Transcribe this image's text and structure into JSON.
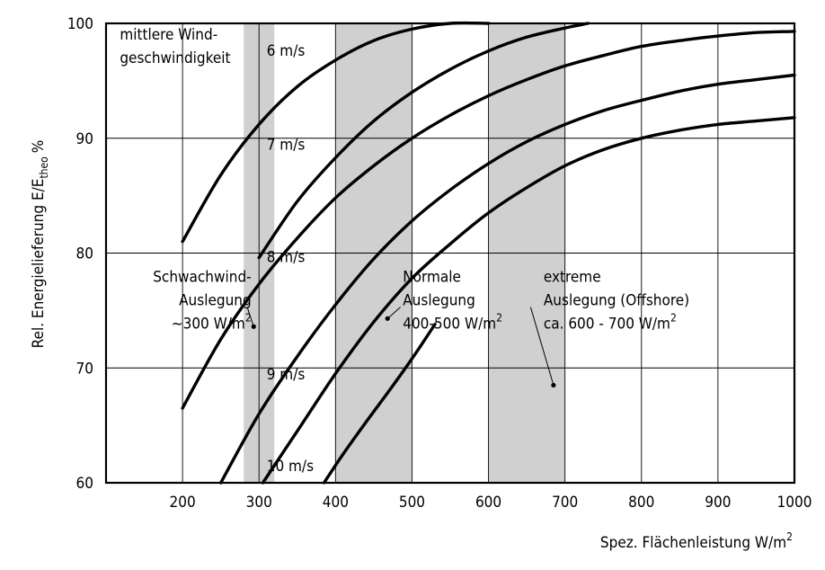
{
  "chart_data": {
    "type": "line",
    "xlabel": "Spez. Flächenleistung W/m",
    "xlabel_sup": "2",
    "ylabel": "Rel. Energielieferung E/E",
    "ylabel_sub": "theo",
    "ylabel_unit": "%",
    "xlim": [
      100,
      1000
    ],
    "ylim": [
      60,
      100
    ],
    "x_ticks": [
      200,
      300,
      400,
      500,
      600,
      700,
      800,
      900,
      1000
    ],
    "y_ticks": [
      60,
      70,
      80,
      90,
      100
    ],
    "grid": true,
    "bands": [
      {
        "name": "schwachwind",
        "x_range": [
          280,
          320
        ]
      },
      {
        "name": "normal",
        "x_range": [
          400,
          500
        ]
      },
      {
        "name": "offshore",
        "x_range": [
          600,
          700
        ]
      }
    ],
    "series": [
      {
        "name": "6 m/s",
        "x": [
          200,
          250,
          300,
          350,
          400,
          450,
          500,
          550,
          600
        ],
        "y": [
          81.0,
          86.8,
          91.2,
          94.5,
          96.8,
          98.5,
          99.5,
          100,
          100
        ]
      },
      {
        "name": "7 m/s",
        "x": [
          300,
          350,
          400,
          450,
          500,
          550,
          600,
          650,
          700,
          730
        ],
        "y": [
          79.6,
          84.5,
          88.3,
          91.5,
          94.0,
          96.0,
          97.6,
          98.8,
          99.6,
          100
        ]
      },
      {
        "name": "8 m/s",
        "x": [
          200,
          250,
          300,
          350,
          400,
          450,
          500,
          550,
          600,
          650,
          700,
          750,
          800,
          850,
          900,
          950,
          1000
        ],
        "y": [
          66.5,
          72.5,
          77.3,
          81.3,
          84.8,
          87.6,
          90.0,
          92.0,
          93.7,
          95.1,
          96.3,
          97.2,
          98.0,
          98.5,
          98.9,
          99.2,
          99.3
        ]
      },
      {
        "name": "9 m/s",
        "x": [
          250,
          300,
          350,
          400,
          450,
          500,
          550,
          600,
          650,
          700,
          750,
          800,
          850,
          900,
          950,
          1000
        ],
        "y": [
          60,
          66.0,
          71.0,
          75.5,
          79.5,
          82.8,
          85.5,
          87.8,
          89.7,
          91.2,
          92.4,
          93.3,
          94.1,
          94.7,
          95.1,
          95.5
        ]
      },
      {
        "name": "10 m/s",
        "x": [
          305,
          350,
          400,
          450,
          500,
          550,
          600,
          650,
          700,
          750,
          800,
          850,
          900,
          950,
          1000
        ],
        "y": [
          60,
          64.5,
          69.5,
          74.0,
          77.8,
          80.8,
          83.5,
          85.7,
          87.6,
          89.0,
          90.0,
          90.7,
          91.2,
          91.5,
          91.8
        ]
      },
      {
        "name": "10 m/s (2)",
        "x": [
          385,
          410,
          440,
          470,
          500,
          530
        ],
        "y": [
          60,
          62.5,
          65.3,
          68.0,
          70.8,
          73.8
        ]
      }
    ],
    "curve_labels": [
      {
        "text": "6 m/s",
        "x": 310,
        "y": 97.2
      },
      {
        "text": "7 m/s",
        "x": 310,
        "y": 89.0
      },
      {
        "text": "8 m/s",
        "x": 310,
        "y": 79.2
      },
      {
        "text": "9 m/s",
        "x": 310,
        "y": 69.0
      },
      {
        "text": "10 m/s",
        "x": 310,
        "y": 61.0
      }
    ],
    "annotations": [
      {
        "lines": [
          "mittlere Wind-",
          "geschwindigkeit"
        ],
        "x": 118,
        "y": 98.6
      },
      {
        "lines": [
          "Schwachwind-",
          "Auslegung",
          "~300  W/m"
        ],
        "sup": "2",
        "x": 118,
        "y": 77.5,
        "align": "end",
        "anchor_x": 290,
        "point": [
          293,
          73.6
        ],
        "leader_from": [
          285,
          75.2
        ]
      },
      {
        "lines": [
          "Normale",
          "Auslegung",
          "400-500  W/m"
        ],
        "sup": "2",
        "x": 488,
        "y": 77.5,
        "point": [
          468,
          74.3
        ],
        "leader_from": [
          485,
          75.3
        ]
      },
      {
        "lines": [
          "extreme",
          "Auslegung (Offshore)",
          "ca. 600  -  700  W/m"
        ],
        "sup": "2",
        "x": 672,
        "y": 77.5,
        "point": [
          685,
          68.5
        ],
        "leader_from": [
          655,
          75.3
        ]
      }
    ]
  }
}
